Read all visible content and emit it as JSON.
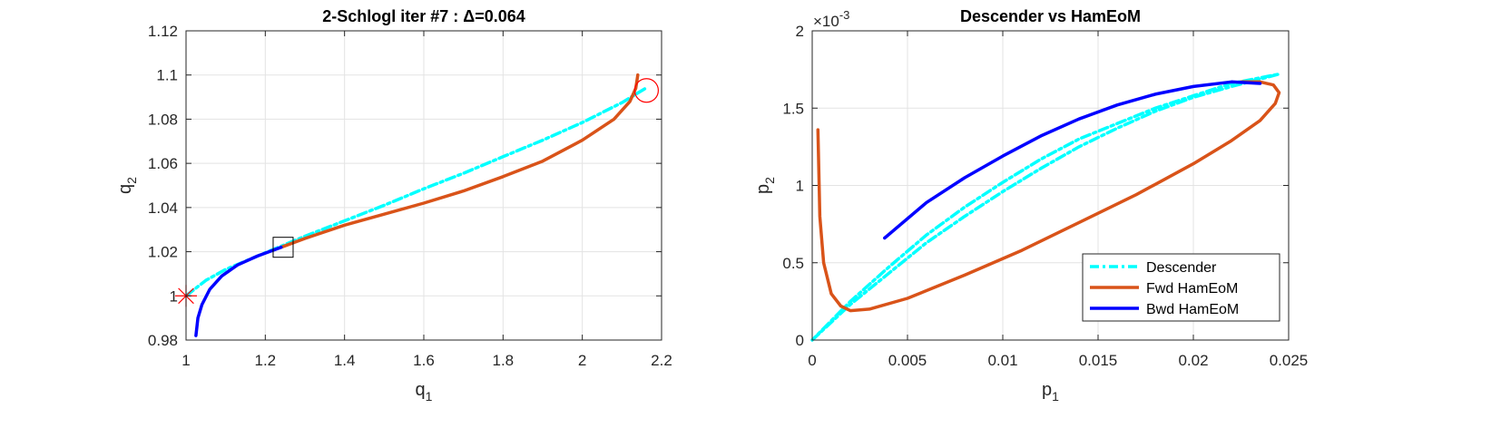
{
  "figure": {
    "background": "#ffffff"
  },
  "colors": {
    "descender": "#00FFFF",
    "fwd": "#D95319",
    "bwd": "#0000FF",
    "marker_start": "#FF0000",
    "marker_end": "#FF0000",
    "box": "#000000"
  },
  "chart_data": [
    {
      "type": "line",
      "title": "2-Schlogl iter #7 : Δ=0.064",
      "xlabel": "q",
      "xlabel_sub": "1",
      "ylabel": "q",
      "ylabel_sub": "2",
      "xlim": [
        1,
        2.2
      ],
      "ylim": [
        0.98,
        1.12
      ],
      "xticks": [
        1,
        1.2,
        1.4,
        1.6,
        1.8,
        2,
        2.2
      ],
      "xtick_labels": [
        "1",
        "1.2",
        "1.4",
        "1.6",
        "1.8",
        "2",
        "2.2"
      ],
      "yticks": [
        0.98,
        1,
        1.02,
        1.04,
        1.06,
        1.08,
        1.1,
        1.12
      ],
      "ytick_labels": [
        "0.98",
        "1",
        "1.02",
        "1.04",
        "1.06",
        "1.08",
        "1.1",
        "1.12"
      ],
      "grid": true,
      "series": [
        {
          "style": "dashdot",
          "color_key": "descender",
          "x": [
            1.0,
            1.05,
            1.1,
            1.2,
            1.3,
            1.4,
            1.5,
            1.6,
            1.7,
            1.8,
            1.9,
            2.0,
            2.1,
            2.16
          ],
          "y": [
            1.0,
            1.007,
            1.012,
            1.0195,
            1.027,
            1.034,
            1.041,
            1.0485,
            1.0555,
            1.063,
            1.0705,
            1.0785,
            1.0875,
            1.094
          ]
        },
        {
          "style": "solid",
          "color_key": "fwd",
          "x": [
            1.24,
            1.3,
            1.4,
            1.5,
            1.6,
            1.7,
            1.8,
            1.9,
            2.0,
            2.08,
            2.12,
            2.135,
            2.14
          ],
          "y": [
            1.022,
            1.026,
            1.032,
            1.037,
            1.042,
            1.0475,
            1.054,
            1.061,
            1.0705,
            1.08,
            1.088,
            1.094,
            1.1
          ]
        },
        {
          "style": "solid",
          "color_key": "bwd",
          "x": [
            1.025,
            1.03,
            1.04,
            1.06,
            1.09,
            1.13,
            1.18,
            1.24
          ],
          "y": [
            0.982,
            0.99,
            0.996,
            1.003,
            1.009,
            1.014,
            1.018,
            1.022
          ]
        }
      ],
      "markers": [
        {
          "type": "asterisk",
          "x": 1.0,
          "y": 1.0,
          "color_key": "marker_start"
        },
        {
          "type": "square",
          "x": 1.245,
          "y": 1.022,
          "color_key": "box"
        },
        {
          "type": "circle",
          "x": 2.162,
          "y": 1.093,
          "color_key": "marker_end"
        }
      ]
    },
    {
      "type": "line",
      "title": "Descender vs HamEoM",
      "xlabel": "p",
      "xlabel_sub": "1",
      "ylabel": "p",
      "ylabel_sub": "2",
      "exponent_label": "×10",
      "exponent_power": "-3",
      "xlim": [
        0,
        0.025
      ],
      "ylim": [
        0,
        2
      ],
      "xticks": [
        0,
        0.005,
        0.01,
        0.015,
        0.02,
        0.025
      ],
      "xtick_labels": [
        "0",
        "0.005",
        "0.01",
        "0.015",
        "0.02",
        "0.025"
      ],
      "yticks": [
        0,
        0.5,
        1,
        1.5,
        2
      ],
      "ytick_labels": [
        "0",
        "0.5",
        "1",
        "1.5",
        "2"
      ],
      "grid": true,
      "legend": {
        "placement": "bottom-right",
        "entries": [
          "Descender",
          "Fwd HamEoM",
          "Bwd HamEoM"
        ]
      },
      "series": [
        {
          "name": "Descender",
          "style": "dashdot",
          "color_key": "descender",
          "x": [
            0.0,
            0.002,
            0.004,
            0.006,
            0.008,
            0.01,
            0.012,
            0.014,
            0.016,
            0.018,
            0.02,
            0.022,
            0.0245,
            0.022,
            0.02,
            0.018,
            0.016,
            0.014,
            0.012,
            0.01,
            0.008,
            0.006,
            0.004,
            0.002,
            0.0
          ],
          "y": [
            0.0,
            0.23,
            0.43,
            0.63,
            0.8,
            0.96,
            1.11,
            1.25,
            1.37,
            1.48,
            1.57,
            1.64,
            1.72,
            1.66,
            1.58,
            1.5,
            1.4,
            1.3,
            1.17,
            1.02,
            0.86,
            0.68,
            0.47,
            0.25,
            0.0
          ]
        },
        {
          "name": "Fwd HamEoM",
          "style": "solid",
          "color_key": "fwd",
          "x": [
            0.0003,
            0.0004,
            0.0006,
            0.001,
            0.0015,
            0.002,
            0.003,
            0.005,
            0.008,
            0.011,
            0.014,
            0.017,
            0.02,
            0.022,
            0.0235,
            0.0243,
            0.0245,
            0.0242,
            0.0235,
            0.0225
          ],
          "y": [
            1.36,
            0.8,
            0.5,
            0.3,
            0.22,
            0.19,
            0.2,
            0.27,
            0.42,
            0.58,
            0.76,
            0.94,
            1.14,
            1.29,
            1.42,
            1.53,
            1.6,
            1.65,
            1.67,
            1.67
          ]
        },
        {
          "name": "Bwd HamEoM",
          "style": "solid",
          "color_key": "bwd",
          "x": [
            0.0038,
            0.006,
            0.008,
            0.01,
            0.012,
            0.014,
            0.016,
            0.018,
            0.02,
            0.022,
            0.0235
          ],
          "y": [
            0.66,
            0.89,
            1.05,
            1.19,
            1.32,
            1.43,
            1.52,
            1.59,
            1.64,
            1.67,
            1.66
          ]
        }
      ]
    }
  ]
}
